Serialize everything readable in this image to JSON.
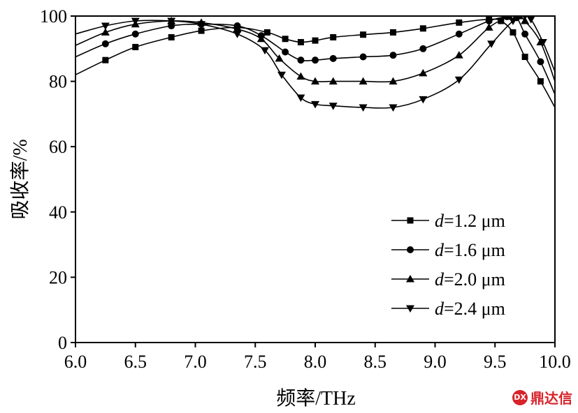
{
  "chart_data": {
    "type": "line",
    "xlabel": "频率/THz",
    "ylabel": "吸收率/%",
    "xlim": [
      6.0,
      10.0
    ],
    "ylim": [
      0,
      100
    ],
    "x_ticks": [
      "6.0",
      "6.5",
      "7.0",
      "7.5",
      "8.0",
      "8.5",
      "9.0",
      "9.5",
      "10.0"
    ],
    "y_ticks": [
      "0",
      "20",
      "40",
      "60",
      "80",
      "100"
    ],
    "grid": false,
    "legend_position": "lower-right",
    "series": [
      {
        "name_prefix": "d",
        "name_suffix": "=1.2 μm",
        "marker": "square",
        "x": [
          6.0,
          6.25,
          6.5,
          6.8,
          7.05,
          7.35,
          7.6,
          7.75,
          7.88,
          8.0,
          8.15,
          8.4,
          8.65,
          8.9,
          9.2,
          9.45,
          9.55,
          9.65,
          9.75,
          9.88,
          10.0
        ],
        "y": [
          82.0,
          86.5,
          90.5,
          93.5,
          95.5,
          96.5,
          95.0,
          93.0,
          92.0,
          92.5,
          93.5,
          94.3,
          95.0,
          96.2,
          98.0,
          99.0,
          98.5,
          95.0,
          87.5,
          80.0,
          72.0
        ]
      },
      {
        "name_prefix": "d",
        "name_suffix": "=1.6 μm",
        "marker": "circle",
        "x": [
          6.0,
          6.25,
          6.5,
          6.8,
          7.05,
          7.35,
          7.55,
          7.75,
          7.88,
          8.0,
          8.15,
          8.4,
          8.65,
          8.9,
          9.2,
          9.45,
          9.6,
          9.68,
          9.75,
          9.88,
          10.0
        ],
        "y": [
          87.5,
          91.5,
          94.5,
          97.0,
          97.5,
          97.0,
          94.0,
          89.0,
          86.5,
          86.5,
          87.0,
          87.5,
          88.0,
          90.0,
          94.5,
          98.5,
          99.8,
          99.5,
          94.5,
          86.0,
          76.0
        ]
      },
      {
        "name_prefix": "d",
        "name_suffix": "=2.0 μm",
        "marker": "triangle-up",
        "x": [
          6.0,
          6.25,
          6.5,
          6.8,
          7.05,
          7.35,
          7.55,
          7.7,
          7.88,
          8.0,
          8.15,
          8.4,
          8.65,
          8.9,
          9.2,
          9.45,
          9.62,
          9.7,
          9.75,
          9.88,
          10.0
        ],
        "y": [
          91.0,
          95.0,
          97.5,
          98.5,
          98.0,
          96.0,
          93.0,
          87.0,
          81.5,
          80.0,
          80.0,
          80.0,
          80.0,
          82.5,
          88.0,
          96.5,
          99.8,
          100.0,
          98.5,
          92.0,
          80.0
        ]
      },
      {
        "name_prefix": "d",
        "name_suffix": "=2.4 μm",
        "marker": "triangle-down",
        "x": [
          6.0,
          6.25,
          6.5,
          6.8,
          7.05,
          7.35,
          7.58,
          7.72,
          7.88,
          8.0,
          8.15,
          8.4,
          8.65,
          8.9,
          9.2,
          9.47,
          9.65,
          9.75,
          9.8,
          9.9,
          10.0
        ],
        "y": [
          94.5,
          97.0,
          98.5,
          98.5,
          97.5,
          94.5,
          89.5,
          82.0,
          75.0,
          73.0,
          72.5,
          72.0,
          72.0,
          74.5,
          80.5,
          91.5,
          98.5,
          100.0,
          99.0,
          92.0,
          83.0
        ]
      }
    ]
  },
  "watermark": {
    "logo_text": "DX",
    "text": "鼎达信"
  }
}
